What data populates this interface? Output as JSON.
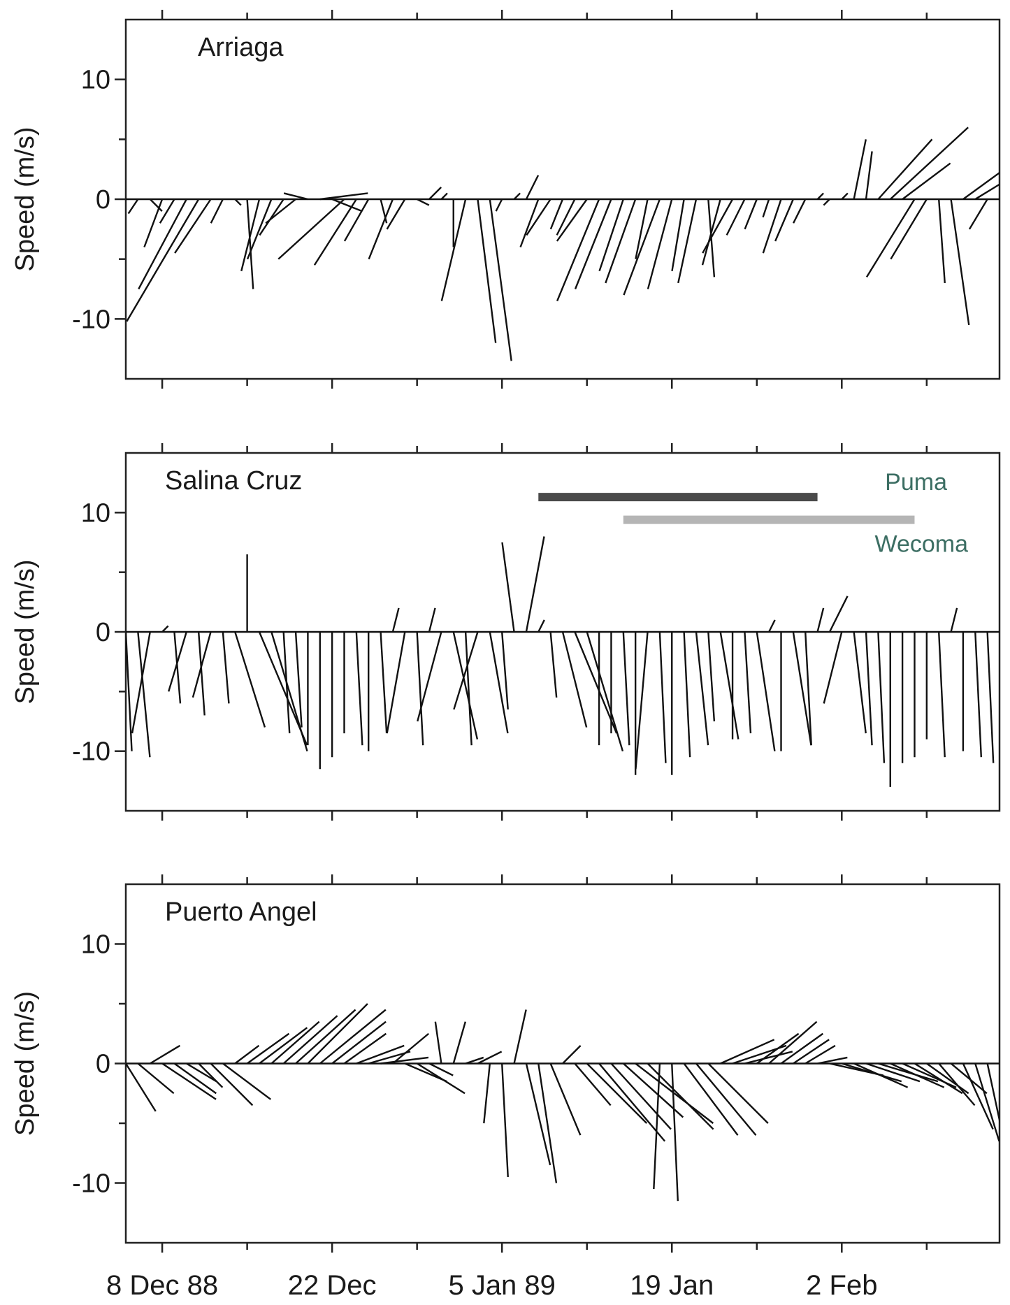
{
  "chart_data": {
    "type": "stick",
    "ylabel": "Speed (m/s)",
    "ylim": [
      -15,
      15
    ],
    "yticks": [
      10,
      0,
      -10
    ],
    "xlim": [
      "1988-12-05",
      "1989-02-15"
    ],
    "xticks": [
      {
        "date": "1988-12-08",
        "label": "8 Dec 88"
      },
      {
        "date": "1988-12-22",
        "label": "22 Dec"
      },
      {
        "date": "1989-01-05",
        "label": "5 Jan 89"
      },
      {
        "date": "1989-01-19",
        "label": "19 Jan"
      },
      {
        "date": "1989-02-02",
        "label": "2 Feb"
      }
    ],
    "panels": [
      {
        "station": "Arriaga",
        "sticks": [
          [
            "1988-12-05",
            -1.2,
            -1.5
          ],
          [
            "1988-12-06",
            -0.8,
            -1.2
          ],
          [
            "1988-12-07",
            1.0,
            -1.0
          ],
          [
            "1988-12-08",
            -1.5,
            -4.0
          ],
          [
            "1988-12-09",
            -1.2,
            -2.0
          ],
          [
            "1988-12-10",
            -4.0,
            -7.5
          ],
          [
            "1988-12-11",
            -6.0,
            -10.2
          ],
          [
            "1988-12-12",
            -3.0,
            -4.5
          ],
          [
            "1988-12-13",
            -1.0,
            -2.0
          ],
          [
            "1988-12-14",
            0.5,
            -0.5
          ],
          [
            "1988-12-15",
            0.5,
            -7.5
          ],
          [
            "1988-12-16",
            -1.5,
            -6.0
          ],
          [
            "1988-12-17",
            -2.0,
            -5.0
          ],
          [
            "1988-12-18",
            -2.0,
            -3.0
          ],
          [
            "1988-12-19",
            -2.5,
            -2.0
          ],
          [
            "1988-12-20",
            -2.0,
            0.5
          ],
          [
            "1988-12-21",
            4.0,
            0.5
          ],
          [
            "1988-12-22",
            2.5,
            -1.0
          ],
          [
            "1988-12-23",
            -5.5,
            -5.0
          ],
          [
            "1988-12-24",
            -3.5,
            -5.5
          ],
          [
            "1988-12-25",
            -2.0,
            -3.5
          ],
          [
            "1988-12-26",
            0.5,
            -2.0
          ],
          [
            "1988-12-27",
            -2.0,
            -5.0
          ],
          [
            "1988-12-28",
            -1.5,
            -2.5
          ],
          [
            "1988-12-29",
            1.0,
            -0.5
          ],
          [
            "1988-12-30",
            1.0,
            1.0
          ],
          [
            "1988-12-31",
            0.5,
            0.5
          ],
          [
            "1989-01-01",
            0.0,
            -4.0
          ],
          [
            "1989-01-02",
            -2.0,
            -8.5
          ],
          [
            "1989-01-03",
            1.5,
            -12.0
          ],
          [
            "1989-01-04",
            1.8,
            -13.5
          ],
          [
            "1989-01-05",
            -0.5,
            -1.0
          ],
          [
            "1989-01-06",
            0.5,
            0.5
          ],
          [
            "1989-01-07",
            1.0,
            2.0
          ],
          [
            "1989-01-08",
            -1.5,
            -4.0
          ],
          [
            "1989-01-09",
            -2.0,
            -3.0
          ],
          [
            "1989-01-10",
            -1.0,
            -2.5
          ],
          [
            "1989-01-11",
            -1.5,
            -3.0
          ],
          [
            "1989-01-12",
            -2.5,
            -3.5
          ],
          [
            "1989-01-13",
            -3.5,
            -8.5
          ],
          [
            "1989-01-14",
            -3.0,
            -7.5
          ],
          [
            "1989-01-15",
            -2.0,
            -6.0
          ],
          [
            "1989-01-16",
            -2.5,
            -7.0
          ],
          [
            "1989-01-17",
            -1.0,
            -5.0
          ],
          [
            "1989-01-18",
            -3.0,
            -8.0
          ],
          [
            "1989-01-19",
            -2.0,
            -7.5
          ],
          [
            "1989-01-20",
            -1.0,
            -6.0
          ],
          [
            "1989-01-21",
            -1.5,
            -7.0
          ],
          [
            "1989-01-22",
            0.5,
            -6.5
          ],
          [
            "1989-01-23",
            -1.5,
            -5.5
          ],
          [
            "1989-01-24",
            -2.5,
            -4.5
          ],
          [
            "1989-01-25",
            -1.5,
            -3.0
          ],
          [
            "1989-01-26",
            -1.0,
            -2.5
          ],
          [
            "1989-01-27",
            -0.5,
            -1.5
          ],
          [
            "1989-01-28",
            -1.5,
            -4.5
          ],
          [
            "1989-01-29",
            -1.5,
            -3.5
          ],
          [
            "1989-01-30",
            -1.0,
            -2.0
          ],
          [
            "1989-01-31",
            0.5,
            0.5
          ],
          [
            "1989-02-01",
            -0.5,
            -0.5
          ],
          [
            "1989-02-02",
            0.5,
            0.5
          ],
          [
            "1989-02-03",
            1.0,
            5.0
          ],
          [
            "1989-02-04",
            0.5,
            4.0
          ],
          [
            "1989-02-05",
            4.5,
            5.0
          ],
          [
            "1989-02-06",
            6.5,
            6.0
          ],
          [
            "1989-02-07",
            4.0,
            3.0
          ],
          [
            "1989-02-08",
            -4.0,
            -6.5
          ],
          [
            "1989-02-09",
            -3.0,
            -5.0
          ],
          [
            "1989-02-10",
            0.5,
            -7.0
          ],
          [
            "1989-02-11",
            1.5,
            -10.5
          ],
          [
            "1989-02-12",
            11.0,
            8.0
          ],
          [
            "1989-02-13",
            9.0,
            5.5
          ],
          [
            "1989-02-14",
            -1.5,
            -2.5
          ]
        ]
      },
      {
        "station": "Salina Cruz",
        "sticks": [
          [
            "1988-12-05",
            0.5,
            -10.0
          ],
          [
            "1988-12-06",
            1.0,
            -10.5
          ],
          [
            "1988-12-07",
            -1.5,
            -8.5
          ],
          [
            "1988-12-08",
            0.5,
            0.5
          ],
          [
            "1988-12-09",
            0.5,
            -6.0
          ],
          [
            "1988-12-10",
            -1.5,
            -5.0
          ],
          [
            "1988-12-11",
            0.5,
            -7.0
          ],
          [
            "1988-12-12",
            -1.5,
            -5.5
          ],
          [
            "1988-12-13",
            0.5,
            -6.0
          ],
          [
            "1988-12-14",
            2.5,
            -8.0
          ],
          [
            "1988-12-15",
            0.0,
            6.5
          ],
          [
            "1988-12-16",
            4.0,
            -9.5
          ],
          [
            "1988-12-17",
            3.0,
            -10.0
          ],
          [
            "1988-12-18",
            0.5,
            -8.5
          ],
          [
            "1988-12-19",
            0.5,
            -8.0
          ],
          [
            "1988-12-20",
            0.0,
            -9.5
          ],
          [
            "1988-12-21",
            0.0,
            -11.5
          ],
          [
            "1988-12-22",
            0.0,
            -10.5
          ],
          [
            "1988-12-23",
            0.0,
            -8.5
          ],
          [
            "1988-12-24",
            0.5,
            -9.5
          ],
          [
            "1988-12-25",
            0.0,
            -10.0
          ],
          [
            "1988-12-26",
            0.5,
            -8.5
          ],
          [
            "1988-12-27",
            0.5,
            2.0
          ],
          [
            "1988-12-28",
            -1.5,
            -8.5
          ],
          [
            "1988-12-29",
            0.5,
            -9.5
          ],
          [
            "1988-12-30",
            0.5,
            2.0
          ],
          [
            "1988-12-31",
            -2.0,
            -7.5
          ],
          [
            "1989-01-01",
            2.0,
            -9.0
          ],
          [
            "1989-01-02",
            0.5,
            -9.5
          ],
          [
            "1989-01-03",
            -2.0,
            -6.5
          ],
          [
            "1989-01-04",
            1.5,
            -8.5
          ],
          [
            "1989-01-05",
            0.5,
            -6.5
          ],
          [
            "1989-01-06",
            -1.0,
            7.5
          ],
          [
            "1989-01-07",
            1.5,
            8.0
          ],
          [
            "1989-01-08",
            0.5,
            1.0
          ],
          [
            "1989-01-09",
            0.5,
            -5.5
          ],
          [
            "1989-01-10",
            2.0,
            -8.0
          ],
          [
            "1989-01-11",
            3.5,
            -8.5
          ],
          [
            "1989-01-12",
            3.0,
            -10.0
          ],
          [
            "1989-01-13",
            0.0,
            -9.5
          ],
          [
            "1989-01-14",
            0.0,
            -8.5
          ],
          [
            "1989-01-15",
            0.5,
            -9.5
          ],
          [
            "1989-01-16",
            0.0,
            -12.0
          ],
          [
            "1989-01-17",
            -1.0,
            -11.5
          ],
          [
            "1989-01-18",
            0.5,
            -11.0
          ],
          [
            "1989-01-19",
            0.0,
            -12.0
          ],
          [
            "1989-01-20",
            0.5,
            -10.5
          ],
          [
            "1989-01-21",
            1.0,
            -9.5
          ],
          [
            "1989-01-22",
            0.5,
            -7.5
          ],
          [
            "1989-01-23",
            1.5,
            -9.0
          ],
          [
            "1989-01-24",
            0.0,
            -9.0
          ],
          [
            "1989-01-25",
            0.5,
            -8.5
          ],
          [
            "1989-01-26",
            1.5,
            -10.0
          ],
          [
            "1989-01-27",
            0.5,
            1.0
          ],
          [
            "1989-01-28",
            0.0,
            -10.0
          ],
          [
            "1989-01-29",
            1.5,
            -9.5
          ],
          [
            "1989-01-30",
            0.5,
            -9.5
          ],
          [
            "1989-01-31",
            0.5,
            2.0
          ],
          [
            "1989-02-01",
            1.5,
            3.0
          ],
          [
            "1989-02-02",
            -1.5,
            -6.0
          ],
          [
            "1989-02-03",
            1.0,
            -8.5
          ],
          [
            "1989-02-04",
            0.5,
            -9.5
          ],
          [
            "1989-02-05",
            0.5,
            -11.0
          ],
          [
            "1989-02-06",
            0.0,
            -13.0
          ],
          [
            "1989-02-07",
            0.0,
            -11.0
          ],
          [
            "1989-02-08",
            0.0,
            -10.5
          ],
          [
            "1989-02-09",
            0.0,
            -9.0
          ],
          [
            "1989-02-10",
            0.5,
            -10.5
          ],
          [
            "1989-02-11",
            0.5,
            2.0
          ],
          [
            "1989-02-12",
            0.0,
            -10.0
          ],
          [
            "1989-02-13",
            0.5,
            -10.5
          ],
          [
            "1989-02-14",
            0.5,
            -11.0
          ]
        ],
        "legend": [
          {
            "label": "Puma",
            "start": "1989-01-08",
            "end": "1989-01-31",
            "color": "#4a4a4a"
          },
          {
            "label": "Wecoma",
            "start": "1989-01-15",
            "end": "1989-02-08",
            "color": "#b5b5b5"
          }
        ]
      },
      {
        "station": "Puerto Angel",
        "sticks": [
          [
            "1988-12-05",
            2.5,
            -4.0
          ],
          [
            "1988-12-06",
            3.0,
            -2.5
          ],
          [
            "1988-12-07",
            2.5,
            1.5
          ],
          [
            "1988-12-08",
            4.5,
            -3.0
          ],
          [
            "1988-12-09",
            3.5,
            -2.5
          ],
          [
            "1988-12-10",
            2.5,
            -1.5
          ],
          [
            "1988-12-11",
            2.0,
            -2.0
          ],
          [
            "1988-12-12",
            3.5,
            -3.5
          ],
          [
            "1988-12-13",
            4.0,
            -3.0
          ],
          [
            "1988-12-14",
            2.0,
            1.5
          ],
          [
            "1988-12-15",
            3.5,
            2.5
          ],
          [
            "1988-12-16",
            4.0,
            3.0
          ],
          [
            "1988-12-17",
            4.0,
            3.5
          ],
          [
            "1988-12-18",
            4.5,
            4.0
          ],
          [
            "1988-12-19",
            5.0,
            4.5
          ],
          [
            "1988-12-20",
            5.0,
            5.0
          ],
          [
            "1988-12-21",
            5.5,
            4.5
          ],
          [
            "1988-12-22",
            4.5,
            3.5
          ],
          [
            "1988-12-23",
            3.5,
            2.5
          ],
          [
            "1988-12-24",
            4.0,
            1.5
          ],
          [
            "1988-12-25",
            3.5,
            1.0
          ],
          [
            "1988-12-26",
            4.0,
            0.5
          ],
          [
            "1988-12-27",
            3.0,
            2.5
          ],
          [
            "1988-12-28",
            3.5,
            -1.5
          ],
          [
            "1988-12-29",
            4.0,
            -2.5
          ],
          [
            "1988-12-30",
            2.0,
            -1.0
          ],
          [
            "1988-12-31",
            -0.5,
            3.5
          ],
          [
            "1989-01-01",
            1.0,
            3.5
          ],
          [
            "1989-01-02",
            1.5,
            0.5
          ],
          [
            "1989-01-03",
            2.0,
            1.0
          ],
          [
            "1989-01-04",
            -0.5,
            -5.0
          ],
          [
            "1989-01-05",
            0.5,
            -9.5
          ],
          [
            "1989-01-06",
            1.0,
            4.5
          ],
          [
            "1989-01-07",
            2.0,
            -8.5
          ],
          [
            "1989-01-08",
            1.5,
            -10.0
          ],
          [
            "1989-01-09",
            2.5,
            -6.0
          ],
          [
            "1989-01-10",
            1.5,
            1.5
          ],
          [
            "1989-01-11",
            3.0,
            -3.5
          ],
          [
            "1989-01-12",
            5.0,
            -5.0
          ],
          [
            "1989-01-13",
            5.5,
            -6.5
          ],
          [
            "1989-01-14",
            5.0,
            -5.5
          ],
          [
            "1989-01-15",
            5.0,
            -4.5
          ],
          [
            "1989-01-16",
            6.5,
            -5.0
          ],
          [
            "1989-01-17",
            5.5,
            -5.5
          ],
          [
            "1989-01-18",
            -0.5,
            -10.5
          ],
          [
            "1989-01-19",
            0.5,
            -11.5
          ],
          [
            "1989-01-20",
            4.5,
            -6.0
          ],
          [
            "1989-01-21",
            5.0,
            -6.0
          ],
          [
            "1989-01-22",
            5.0,
            -5.0
          ],
          [
            "1989-01-23",
            4.5,
            2.0
          ],
          [
            "1989-01-24",
            4.5,
            1.5
          ],
          [
            "1989-01-25",
            4.0,
            1.0
          ],
          [
            "1989-01-26",
            3.5,
            2.5
          ],
          [
            "1989-01-27",
            4.0,
            3.5
          ],
          [
            "1989-01-28",
            3.5,
            2.5
          ],
          [
            "1989-01-29",
            3.0,
            2.0
          ],
          [
            "1989-01-30",
            2.5,
            1.5
          ],
          [
            "1989-01-31",
            2.5,
            0.5
          ],
          [
            "1989-02-01",
            4.5,
            -1.0
          ],
          [
            "1989-02-02",
            5.0,
            -1.5
          ],
          [
            "1989-02-03",
            4.5,
            -2.0
          ],
          [
            "1989-02-04",
            4.5,
            -1.5
          ],
          [
            "1989-02-05",
            5.0,
            -1.5
          ],
          [
            "1989-02-06",
            4.5,
            -2.0
          ],
          [
            "1989-02-07",
            4.5,
            -2.0
          ],
          [
            "1989-02-08",
            4.0,
            -2.5
          ],
          [
            "1989-02-09",
            3.5,
            -2.5
          ],
          [
            "1989-02-10",
            3.0,
            -3.5
          ],
          [
            "1989-02-11",
            3.0,
            -2.5
          ],
          [
            "1989-02-12",
            2.5,
            -5.5
          ],
          [
            "1989-02-13",
            2.0,
            -6.5
          ],
          [
            "1989-02-14",
            1.5,
            -7.0
          ]
        ]
      }
    ]
  }
}
